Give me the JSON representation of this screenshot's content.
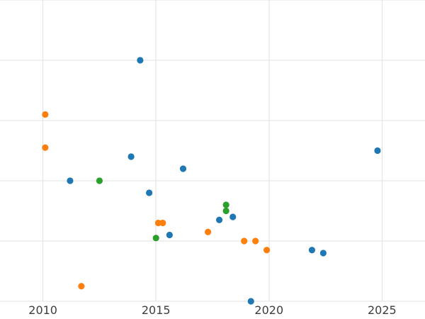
{
  "chart_data": {
    "type": "scatter",
    "title": "",
    "xlabel": "",
    "ylabel": "",
    "xlim": [
      2008.1,
      2026.9
    ],
    "ylim": [
      0,
      100
    ],
    "xticks": [
      2010,
      2015,
      2020,
      2025
    ],
    "x_tick_labels": [
      "2010",
      "2015",
      "2020",
      "2025"
    ],
    "ygrid_values": [
      0,
      20,
      40,
      60,
      80,
      100
    ],
    "grid": true,
    "legend": "none",
    "background_color": "#ffffff",
    "gridline_color": "#e2e2e2",
    "tick_label_color": "#3d3d3d",
    "marker_radius": 4.6,
    "series": [
      {
        "name": "blue",
        "color": "#1f77b4",
        "points": [
          [
            2014.3,
            80
          ],
          [
            2011.2,
            40
          ],
          [
            2013.9,
            48
          ],
          [
            2014.7,
            36
          ],
          [
            2015.6,
            22
          ],
          [
            2016.2,
            44
          ],
          [
            2017.8,
            27
          ],
          [
            2018.4,
            28
          ],
          [
            2019.2,
            0
          ],
          [
            2021.9,
            17
          ],
          [
            2022.4,
            16
          ],
          [
            2024.8,
            50
          ]
        ]
      },
      {
        "name": "orange",
        "color": "#ff7f0e",
        "points": [
          [
            2010.1,
            62
          ],
          [
            2010.1,
            51
          ],
          [
            2011.7,
            5
          ],
          [
            2015.1,
            26
          ],
          [
            2015.3,
            26
          ],
          [
            2017.3,
            23
          ],
          [
            2018.9,
            20
          ],
          [
            2019.4,
            20
          ],
          [
            2019.9,
            17
          ]
        ]
      },
      {
        "name": "green",
        "color": "#2ca02c",
        "points": [
          [
            2012.5,
            40
          ],
          [
            2018.1,
            32
          ],
          [
            2018.1,
            30
          ],
          [
            2015.0,
            21
          ]
        ]
      }
    ]
  }
}
